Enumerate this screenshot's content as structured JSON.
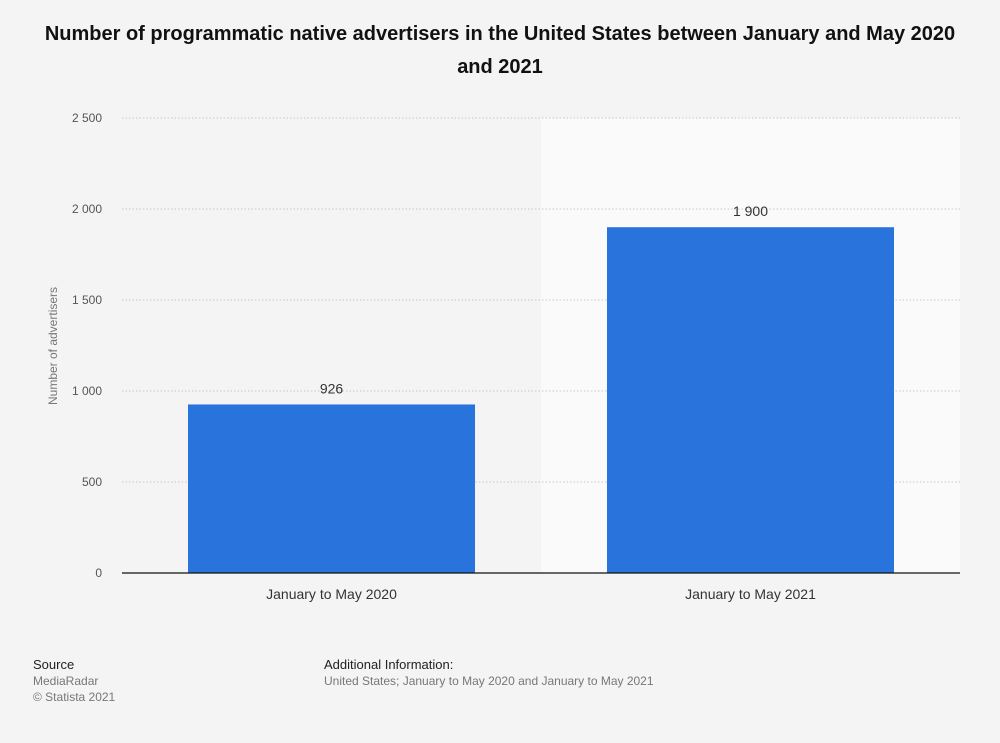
{
  "chart_data": {
    "type": "bar",
    "title": "Number of programmatic native advertisers in the United States between January and May 2020 and 2021",
    "categories": [
      "January to May 2020",
      "January to May 2021"
    ],
    "values": [
      926,
      1900
    ],
    "value_labels": [
      "926",
      "1 900"
    ],
    "ylabel": "Number of advertisers",
    "xlabel": "",
    "ylim": [
      0,
      2500
    ],
    "yticks": [
      0,
      500,
      1000,
      1500,
      2000,
      2500
    ],
    "ytick_labels": [
      "0",
      "500",
      "1 000",
      "1 500",
      "2 000",
      "2 500"
    ],
    "grid": true,
    "bar_color": "#2874dc",
    "highlighted_category_index": 1
  },
  "footer": {
    "source_heading": "Source",
    "source_name": "MediaRadar",
    "copyright": "© Statista 2021",
    "info_heading": "Additional Information:",
    "info_text": "United States; January to May 2020 and January to May 2021"
  }
}
